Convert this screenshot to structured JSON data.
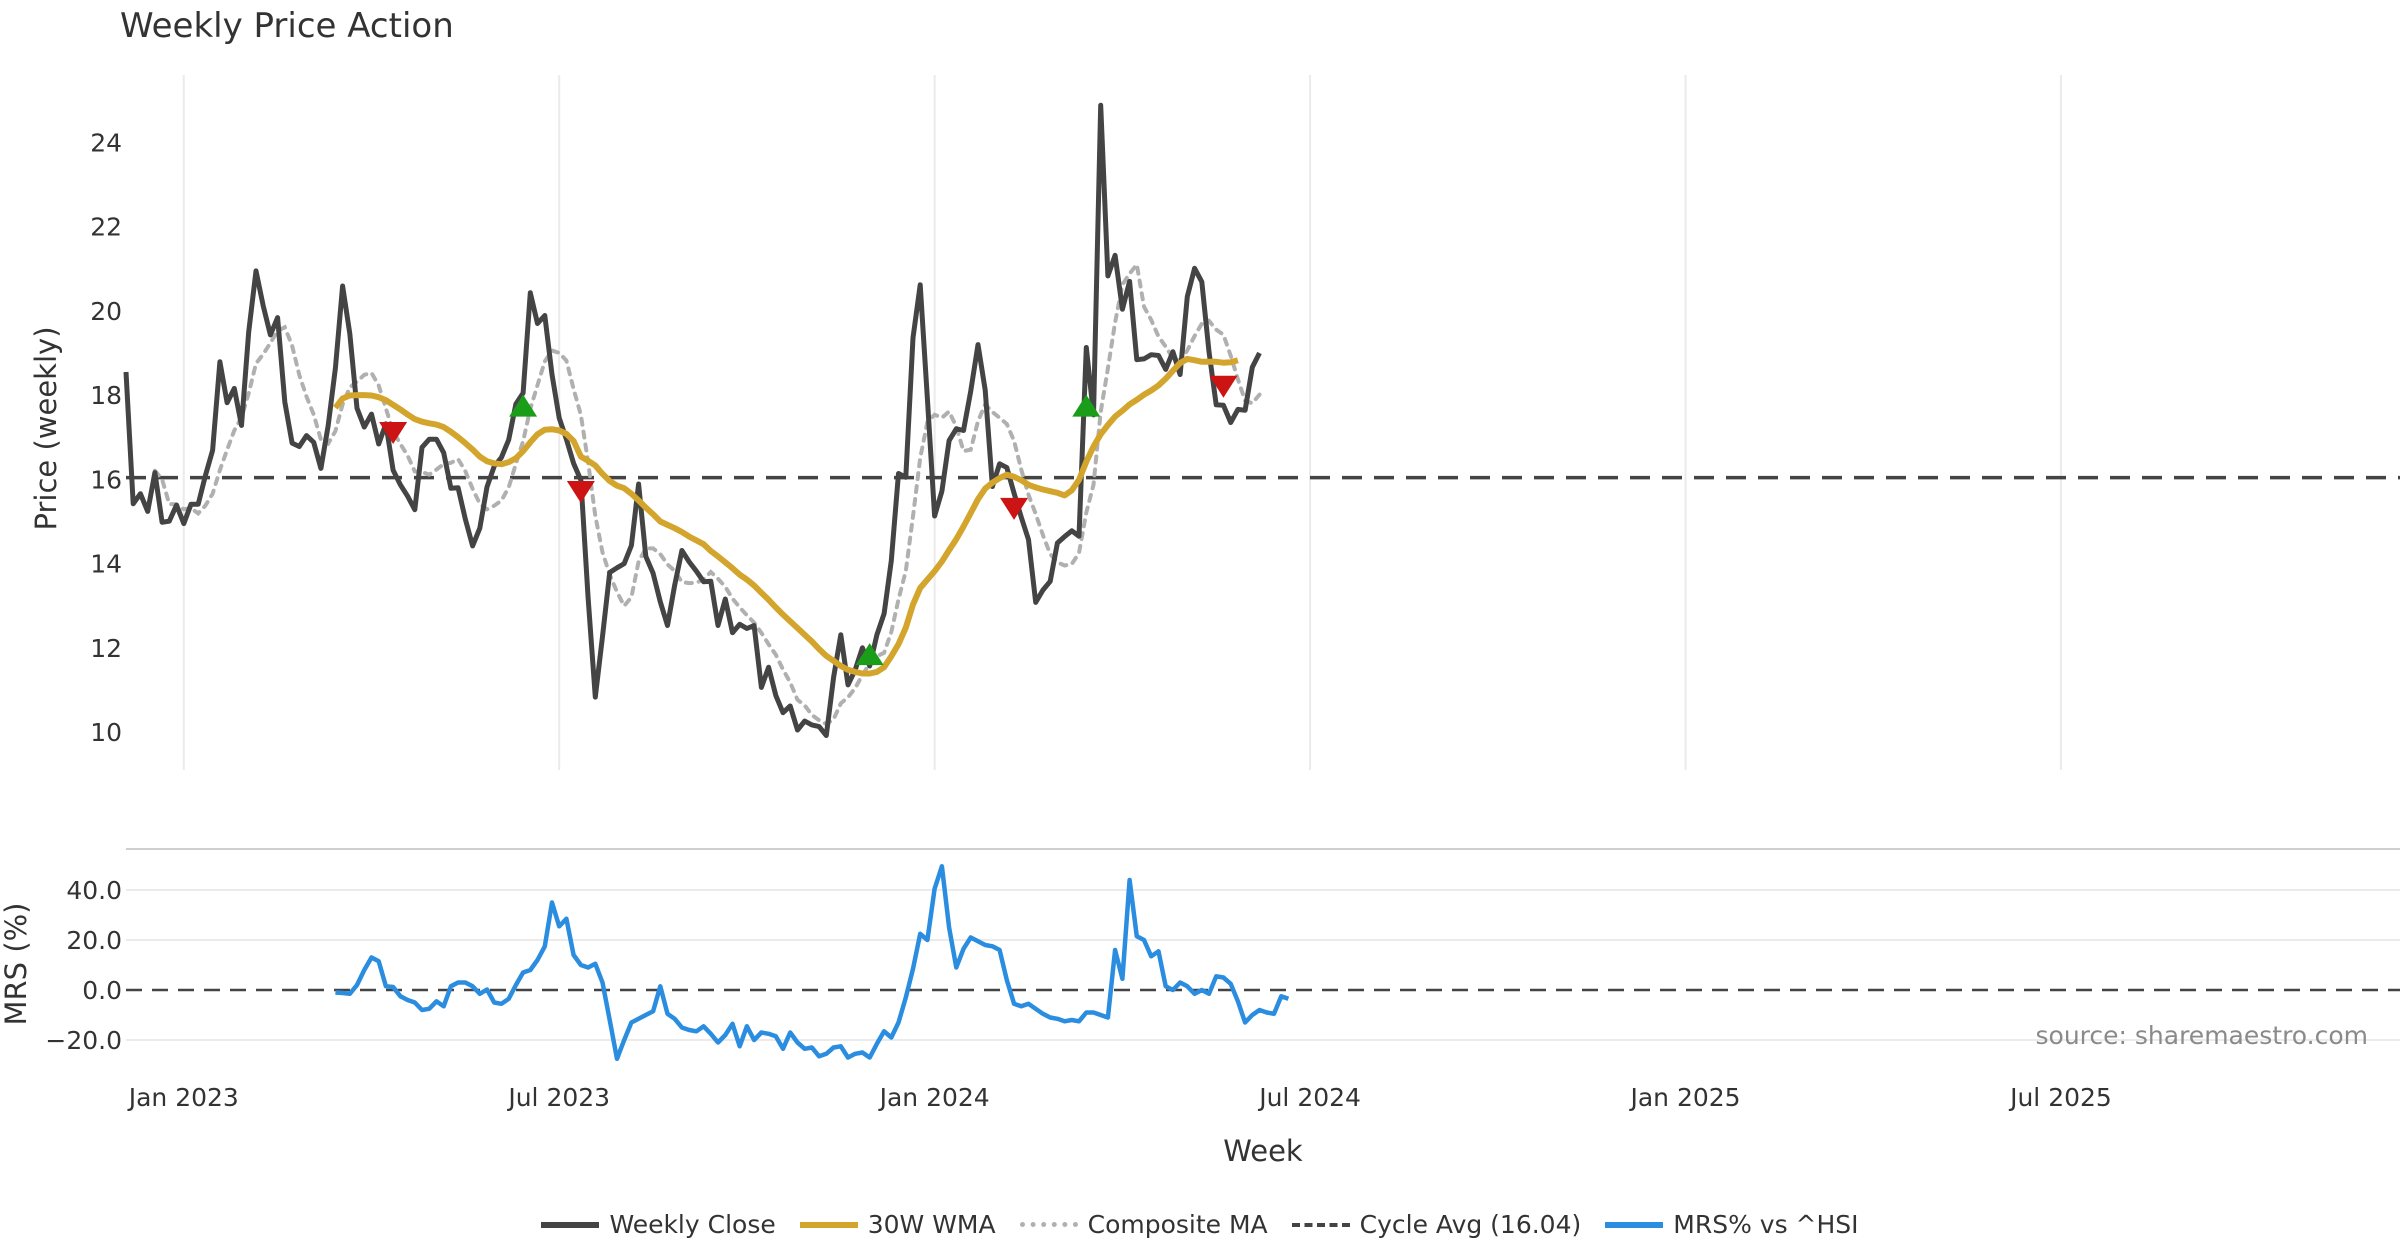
{
  "chart_data": {
    "type": "line",
    "title": "Weekly Price Action",
    "source": "source: sharemaestro.com",
    "x_ticks": [
      "Jan 2023",
      "Jul 2023",
      "Jan 2024",
      "Jul 2024",
      "Jan 2025",
      "Jul 2025"
    ],
    "x_tick_weeks": [
      8,
      60,
      112,
      164,
      216,
      268
    ],
    "xlabel": "Week",
    "price_panel": {
      "ylabel": "Price (weekly)",
      "ylim": [
        9.1,
        25.6
      ],
      "yticks": [
        10,
        12,
        14,
        16,
        18,
        20,
        22,
        24
      ],
      "cycle_avg": 16.04,
      "close": [
        18.55,
        15.42,
        15.66,
        15.24,
        16.16,
        14.98,
        15.01,
        15.39,
        14.95,
        15.41,
        15.41,
        16.09,
        16.69,
        18.79,
        17.82,
        18.16,
        17.28,
        19.5,
        20.95,
        20.12,
        19.43,
        19.84,
        17.84,
        16.86,
        16.78,
        17.04,
        16.88,
        16.26,
        17.28,
        18.64,
        20.59,
        19.46,
        17.69,
        17.24,
        17.55,
        16.84,
        17.32,
        16.22,
        15.87,
        15.6,
        15.28,
        16.76,
        16.95,
        16.95,
        16.63,
        15.79,
        15.8,
        15.06,
        14.42,
        14.84,
        15.82,
        16.31,
        16.52,
        16.94,
        17.79,
        18.05,
        20.43,
        19.7,
        19.89,
        18.49,
        17.46,
        16.95,
        16.38,
        15.98,
        13.19,
        10.83,
        12.27,
        13.79,
        13.9,
        14.0,
        14.43,
        15.89,
        14.17,
        13.77,
        13.09,
        12.53,
        13.49,
        14.31,
        14.04,
        13.82,
        13.57,
        13.58,
        12.53,
        13.16,
        12.36,
        12.56,
        12.46,
        12.53,
        11.06,
        11.54,
        10.87,
        10.46,
        10.62,
        10.05,
        10.26,
        10.17,
        10.13,
        9.92,
        11.3,
        12.31,
        11.12,
        11.48,
        12.0,
        11.57,
        12.31,
        12.81,
        14.07,
        16.14,
        16.05,
        19.36,
        20.62,
        17.91,
        15.13,
        15.72,
        16.92,
        17.2,
        17.16,
        18.09,
        19.2,
        18.12,
        15.83,
        16.37,
        16.28,
        15.67,
        15.1,
        14.57,
        13.08,
        13.37,
        13.58,
        14.49,
        14.64,
        14.78,
        14.65,
        19.13,
        17.53,
        24.88,
        20.83,
        21.32,
        20.04,
        20.7,
        18.84,
        18.86,
        18.96,
        18.94,
        18.61,
        19.03,
        18.49,
        20.34,
        21.01,
        20.69,
        19.03,
        17.77,
        17.76,
        17.35,
        17.66,
        17.64,
        18.66,
        19.0
      ],
      "wma30_start": 29,
      "wma30": [
        17.7,
        17.92,
        17.99,
        18.0,
        18.0,
        17.99,
        17.95,
        17.88,
        17.77,
        17.66,
        17.54,
        17.43,
        17.37,
        17.33,
        17.3,
        17.24,
        17.13,
        17.0,
        16.86,
        16.71,
        16.54,
        16.43,
        16.38,
        16.36,
        16.41,
        16.5,
        16.67,
        16.88,
        17.07,
        17.18,
        17.19,
        17.16,
        17.08,
        16.91,
        16.54,
        16.44,
        16.33,
        16.13,
        15.96,
        15.85,
        15.79,
        15.66,
        15.5,
        15.33,
        15.17,
        15.0,
        14.92,
        14.84,
        14.75,
        14.64,
        14.55,
        14.46,
        14.3,
        14.17,
        14.03,
        13.89,
        13.74,
        13.62,
        13.48,
        13.31,
        13.14,
        12.96,
        12.79,
        12.63,
        12.47,
        12.31,
        12.15,
        11.97,
        11.81,
        11.69,
        11.57,
        11.48,
        11.43,
        11.39,
        11.39,
        11.43,
        11.54,
        11.8,
        12.09,
        12.48,
        13.03,
        13.42,
        13.62,
        13.82,
        14.05,
        14.32,
        14.58,
        14.88,
        15.2,
        15.53,
        15.78,
        15.92,
        16.03,
        16.11,
        16.06,
        15.98,
        15.87,
        15.81,
        15.76,
        15.72,
        15.68,
        15.62,
        15.74,
        15.99,
        16.42,
        16.78,
        17.07,
        17.29,
        17.49,
        17.63,
        17.78,
        17.89,
        18.01,
        18.11,
        18.23,
        18.39,
        18.58,
        18.76,
        18.86,
        18.83,
        18.79,
        18.79,
        18.79,
        18.77,
        18.78,
        18.83
      ]
    },
    "mrs_panel": {
      "ylabel": "MRS (%)",
      "ylim": [
        -28,
        52
      ],
      "yticks": [
        -20.0,
        0.0,
        20.0,
        40.0
      ],
      "start_week": 29,
      "values": [
        -1.0,
        -1.2,
        -1.5,
        2.0,
        8.0,
        13.0,
        11.5,
        1.5,
        1.2,
        -2.5,
        -4.0,
        -5.0,
        -8.0,
        -7.5,
        -4.5,
        -6.5,
        1.5,
        3.0,
        3.0,
        1.5,
        -1.5,
        0.2,
        -5.0,
        -5.5,
        -3.5,
        2.0,
        7.0,
        8.0,
        12.0,
        17.5,
        35.0,
        25.5,
        28.5,
        14.0,
        10.0,
        9.0,
        10.5,
        3.0,
        -12.0,
        -27.5,
        -20.0,
        -13.0,
        -11.5,
        -10.0,
        -8.5,
        1.5,
        -9.5,
        -11.5,
        -15.0,
        -16.0,
        -16.5,
        -14.5,
        -17.5,
        -21.0,
        -18.0,
        -13.5,
        -22.5,
        -14.5,
        -20.0,
        -17.0,
        -17.5,
        -18.5,
        -23.5,
        -17.0,
        -21.0,
        -23.5,
        -23.0,
        -26.5,
        -25.5,
        -23.0,
        -22.5,
        -27.0,
        -25.5,
        -25.0,
        -27.0,
        -21.5,
        -16.5,
        -19.0,
        -13.0,
        -3.0,
        8.5,
        22.5,
        20.0,
        40.5,
        49.5,
        25.0,
        9.0,
        16.5,
        21.0,
        19.5,
        18.0,
        17.5,
        16.0,
        4.0,
        -5.5,
        -6.5,
        -5.5,
        -7.5,
        -9.5,
        -11.0,
        -11.5,
        -12.5,
        -12.0,
        -12.5,
        -9.0,
        -9.0,
        -10.0,
        -11.0,
        16.0,
        4.5,
        44.0,
        21.5,
        20.0,
        13.5,
        15.5,
        1.5,
        0.0,
        3.0,
        1.5,
        -1.5,
        0.0,
        -1.5,
        5.5,
        5.0,
        2.5,
        -4.5,
        -13.0,
        -10.0,
        -8.0,
        -9.0,
        -9.5,
        -2.5,
        -3.5
      ]
    },
    "signals": [
      {
        "type": "sell",
        "week": 37,
        "price": 17.1
      },
      {
        "type": "buy",
        "week": 55,
        "price": 17.75
      },
      {
        "type": "sell",
        "week": 63,
        "price": 15.7
      },
      {
        "type": "buy",
        "week": 103,
        "price": 11.85
      },
      {
        "type": "sell",
        "week": 123,
        "price": 15.3
      },
      {
        "type": "buy",
        "week": 133,
        "price": 17.75
      },
      {
        "type": "sell",
        "week": 152,
        "price": 18.2
      }
    ],
    "legend": {
      "close": "Weekly Close",
      "wma": "30W WMA",
      "composite": "Composite MA",
      "cycle": "Cycle Avg (16.04)",
      "mrs": "MRS% vs ^HSI"
    },
    "colors": {
      "close": "#444444",
      "wma": "#d4a52c",
      "composite": "#b0b0b0",
      "cycle": "#444444",
      "mrs": "#2b8de0",
      "buy": "#1a9e1a",
      "sell": "#cc1414",
      "grid": "#ebebeb"
    }
  }
}
